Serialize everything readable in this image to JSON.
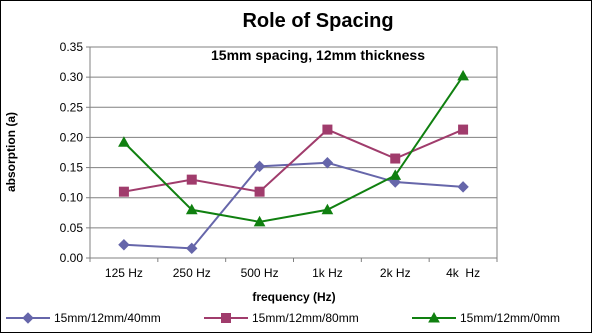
{
  "chart_data": {
    "type": "line",
    "title": "Role of Spacing",
    "subtitle": "15mm spacing, 12mm thickness",
    "xlabel": "frequency (Hz)",
    "ylabel": "absorption (a)",
    "categories": [
      "125 Hz",
      "250 Hz",
      "500 Hz",
      "1k Hz",
      "2k Hz",
      "4k  Hz"
    ],
    "ylim": [
      0,
      0.35
    ],
    "yticks": [
      "0.00",
      "0.05",
      "0.10",
      "0.15",
      "0.20",
      "0.25",
      "0.30",
      "0.35"
    ],
    "grid": "horizontal",
    "legend_position": "bottom",
    "series": [
      {
        "name": "15mm/12mm/40mm",
        "values": [
          0.022,
          0.016,
          0.152,
          0.158,
          0.126,
          0.118
        ],
        "color": "#6666aa",
        "marker": "diamond"
      },
      {
        "name": "15mm/12mm/80mm",
        "values": [
          0.11,
          0.13,
          0.11,
          0.213,
          0.165,
          0.213
        ],
        "color": "#a03c6c",
        "marker": "square"
      },
      {
        "name": "15mm/12mm/0mm",
        "values": [
          0.192,
          0.08,
          0.06,
          0.08,
          0.137,
          0.302
        ],
        "color": "#108010",
        "marker": "triangle"
      }
    ]
  }
}
